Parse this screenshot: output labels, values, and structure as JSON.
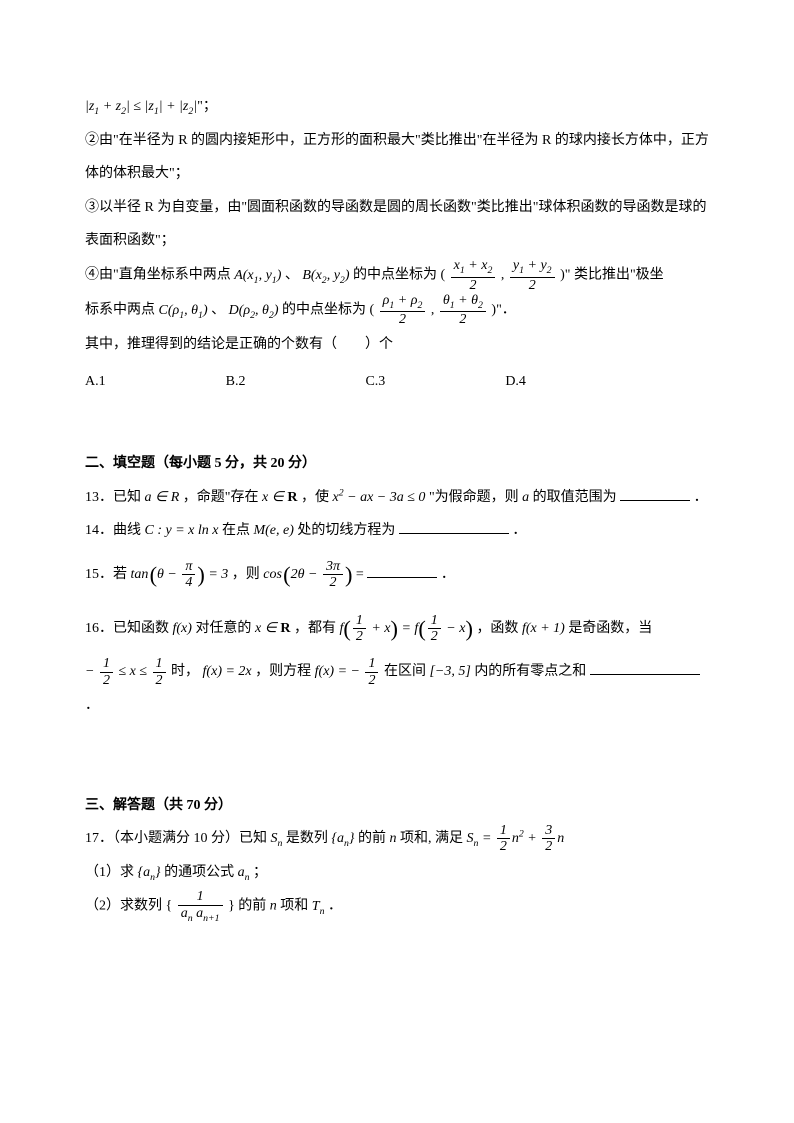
{
  "q_prev": {
    "line1_prefix": "|",
    "line1_suffix_a": "| ≤ |",
    "line1_suffix_b": "| + |",
    "line1_suffix_c": "|\"；",
    "item2": "②由\"在半径为 R 的圆内接矩形中，正方形的面积最大\"类比推出\"在半径为 R 的球内接长方体中，正方体的体积最大\"；",
    "item3": "③以半径 R 为自变量，由\"圆面积函数的导函数是圆的周长函数\"类比推出\"球体积函数的导函数是球的表面积函数\"；",
    "item4_a": "④由\"直角坐标系中两点 ",
    "item4_b": "、",
    "item4_c": " 的中点坐标为 (",
    "item4_d": ", ",
    "item4_e": ")\" 类比推出\"极坐",
    "item4_f": "标系中两点 ",
    "item4_g": "、",
    "item4_h": " 的中点坐标为 (",
    "item4_i": ", ",
    "item4_j": ")\"．",
    "stem": "其中，推理得到的结论是正确的个数有（　　）个",
    "opts": [
      "A.1",
      "B.2",
      "C.3",
      "D.4"
    ]
  },
  "section2": {
    "title": "二、填空题（每小题 5 分，共 20 分）",
    "q13_a": "13．已知 ",
    "q13_b": "，命题\"存在 ",
    "q13_c": "，使 ",
    "q13_d": "\"为假命题，则 ",
    "q13_e": " 的取值范围为",
    "q13_f": "．",
    "q14_a": "14．曲线 ",
    "q14_b": " 在点 ",
    "q14_c": " 处的切线方程为",
    "q14_d": "．",
    "q15_a": "15．若 ",
    "q15_b": "，则 ",
    "q15_c": " = ",
    "q15_d": "．",
    "q16_a": "16．已知函数 ",
    "q16_b": " 对任意的 ",
    "q16_c": " ，都有 ",
    "q16_d": "，函数 ",
    "q16_e": " 是奇函数，当",
    "q16_f": " 时，",
    "q16_g": "，则方程 ",
    "q16_h": " 在区间 ",
    "q16_i": " 内的所有零点之和",
    "q16_j": "．"
  },
  "section3": {
    "title": "三、解答题（共 70 分）",
    "q17_a": "17．（本小题满分 10 分）已知 ",
    "q17_b": " 是数列 ",
    "q17_c": " 的前 ",
    "q17_d": " 项和, 满足 ",
    "q17_sub1_a": "（1）求 ",
    "q17_sub1_b": " 的通项公式 ",
    "q17_sub1_c": "；",
    "q17_sub2_a": "（2）求数列 { ",
    "q17_sub2_b": " } 的前 ",
    "q17_sub2_c": " 项和 ",
    "q17_sub2_d": "．"
  }
}
